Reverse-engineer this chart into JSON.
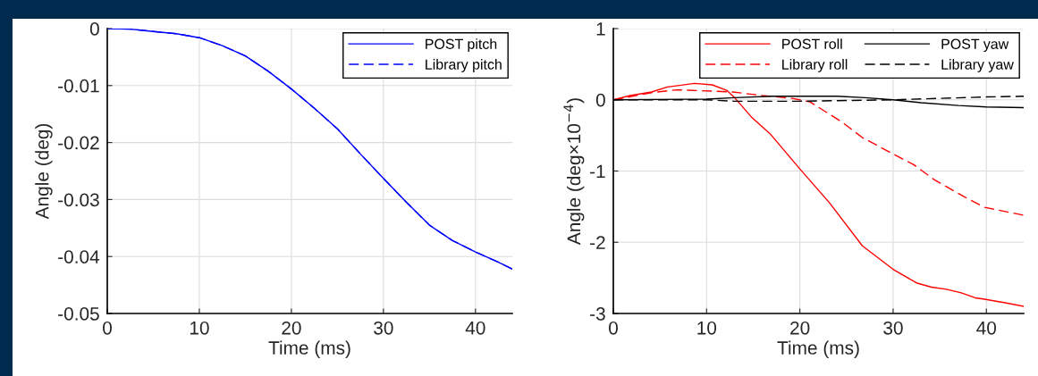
{
  "chart_data": [
    {
      "type": "line",
      "xlabel": "Time (ms)",
      "ylabel": "Angle (deg)",
      "xlim": [
        0,
        44
      ],
      "xticks": [
        0,
        10,
        20,
        30,
        40
      ],
      "ylim": [
        -0.05,
        0
      ],
      "yticks": [
        -0.05,
        -0.04,
        -0.03,
        -0.02,
        -0.01,
        0
      ],
      "grid": true,
      "legend": "top right",
      "x": [
        0,
        2.5,
        5,
        7.5,
        10,
        12.5,
        15,
        17.5,
        20,
        22.5,
        25,
        27.5,
        30,
        32.5,
        35,
        37.5,
        40,
        42.5,
        44
      ],
      "series": [
        {
          "name": "POST pitch",
          "color": "#0000ff",
          "line_style": "solid",
          "values": [
            0,
            -0.0001,
            -0.0005,
            -0.0009,
            -0.0016,
            -0.003,
            -0.0048,
            -0.0075,
            -0.0106,
            -0.014,
            -0.0176,
            -0.022,
            -0.0263,
            -0.0305,
            -0.0345,
            -0.0372,
            -0.0392,
            -0.041,
            -0.0422
          ]
        },
        {
          "name": "Library pitch",
          "color": "#0000ff",
          "line_style": "dashed",
          "values": [
            0,
            -0.0001,
            -0.0005,
            -0.0009,
            -0.0016,
            -0.003,
            -0.0048,
            -0.0075,
            -0.0106,
            -0.014,
            -0.0176,
            -0.022,
            -0.0263,
            -0.0305,
            -0.0345,
            -0.0372,
            -0.0392,
            -0.041,
            -0.0422
          ]
        }
      ]
    },
    {
      "type": "line",
      "xlabel": "Time (ms)",
      "ylabel": "Angle (deg×10$^{−4}$)",
      "xlim": [
        0,
        44
      ],
      "xticks": [
        0,
        10,
        20,
        30,
        40
      ],
      "ylim": [
        -3,
        1
      ],
      "yticks": [
        -3,
        -2,
        -1,
        0,
        1
      ],
      "grid": true,
      "legend": "top right",
      "series": [
        {
          "name": "POST roll",
          "color": "#ff0000",
          "line_style": "solid",
          "x": [
            0,
            1.8,
            4.1,
            5.8,
            8.7,
            10.6,
            12.2,
            13,
            14.8,
            16.9,
            20,
            23.2,
            26.7,
            30,
            32.5,
            34.1,
            35.7,
            37.3,
            38.8,
            39.8,
            42,
            44
          ],
          "values": [
            0,
            0.06,
            0.11,
            0.18,
            0.23,
            0.21,
            0.13,
            0.03,
            -0.24,
            -0.49,
            -0.97,
            -1.45,
            -2.05,
            -2.38,
            -2.57,
            -2.63,
            -2.66,
            -2.71,
            -2.78,
            -2.8,
            -2.85,
            -2.9
          ]
        },
        {
          "name": "Library roll",
          "color": "#ff0000",
          "line_style": "dashed",
          "x": [
            0,
            4.1,
            6.8,
            9,
            12.8,
            16,
            19.2,
            21.1,
            24.6,
            26.7,
            30,
            32.2,
            34.4,
            37.6,
            39.8,
            44
          ],
          "values": [
            0,
            0.1,
            0.14,
            0.13,
            0.11,
            0.06,
            0.02,
            -0.03,
            -0.32,
            -0.53,
            -0.76,
            -0.91,
            -1.12,
            -1.36,
            -1.51,
            -1.62
          ]
        },
        {
          "name": "POST yaw",
          "color": "#000000",
          "line_style": "solid",
          "x": [
            0,
            10,
            13,
            17,
            20,
            24,
            27,
            30,
            33,
            37,
            40,
            44
          ],
          "values": [
            0,
            0.01,
            0.03,
            0.05,
            0.05,
            0.05,
            0.03,
            0,
            -0.04,
            -0.08,
            -0.1,
            -0.11
          ]
        },
        {
          "name": "Library yaw",
          "color": "#000000",
          "line_style": "dashed",
          "x": [
            0,
            10,
            13,
            20,
            25,
            30,
            35,
            40,
            44
          ],
          "values": [
            0,
            0,
            -0.02,
            -0.02,
            -0.01,
            0,
            0.02,
            0.04,
            0.05
          ]
        }
      ]
    }
  ]
}
